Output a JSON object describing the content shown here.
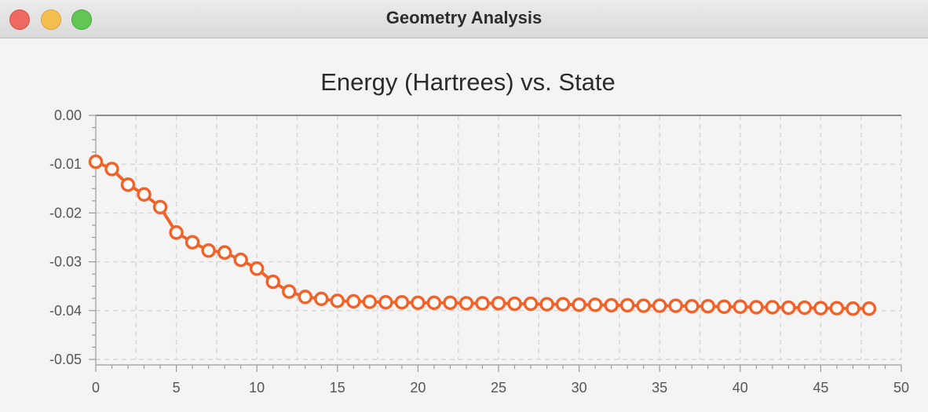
{
  "window": {
    "title": "Geometry Analysis"
  },
  "colors": {
    "series": "#f0642c",
    "grid": "#d7d7d7",
    "text": "#555555"
  },
  "chart_data": {
    "type": "line",
    "title": "Energy (Hartrees) vs. State",
    "xlabel": "",
    "ylabel": "",
    "xlim": [
      0,
      50
    ],
    "ylim": [
      -0.05,
      0.0
    ],
    "x_ticks": [
      0,
      5,
      10,
      15,
      20,
      25,
      30,
      35,
      40,
      45,
      50
    ],
    "y_ticks": [
      0.0,
      -0.01,
      -0.02,
      -0.03,
      -0.04,
      -0.05
    ],
    "x_tick_labels": [
      "0",
      "5",
      "10",
      "15",
      "20",
      "25",
      "30",
      "35",
      "40",
      "45",
      "50"
    ],
    "y_tick_labels": [
      "0.00",
      "-0.01",
      "-0.02",
      "-0.03",
      "-0.04",
      "-0.05"
    ],
    "grid": true,
    "series": [
      {
        "x": [
          0,
          1,
          2,
          3,
          4,
          5,
          6,
          7,
          8,
          9,
          10,
          11,
          12,
          13,
          14,
          15,
          16,
          17,
          18,
          19,
          20,
          21,
          22,
          23,
          24,
          25,
          26,
          27,
          28,
          29,
          30,
          31,
          32,
          33,
          34,
          35,
          36,
          37,
          38,
          39,
          40,
          41,
          42,
          43,
          44,
          45,
          46,
          47,
          48
        ],
        "values": [
          -0.0095,
          -0.011,
          -0.0142,
          -0.0162,
          -0.0188,
          -0.024,
          -0.026,
          -0.0277,
          -0.0281,
          -0.0296,
          -0.0314,
          -0.0341,
          -0.0361,
          -0.0372,
          -0.0376,
          -0.038,
          -0.0381,
          -0.0382,
          -0.0383,
          -0.0383,
          -0.0384,
          -0.0384,
          -0.0384,
          -0.0385,
          -0.0385,
          -0.0385,
          -0.0386,
          -0.0386,
          -0.0387,
          -0.0387,
          -0.0388,
          -0.0388,
          -0.0389,
          -0.0389,
          -0.039,
          -0.039,
          -0.039,
          -0.0391,
          -0.0391,
          -0.0392,
          -0.0392,
          -0.0393,
          -0.0393,
          -0.0394,
          -0.0394,
          -0.0395,
          -0.0395,
          -0.0396,
          -0.0396
        ]
      }
    ]
  }
}
